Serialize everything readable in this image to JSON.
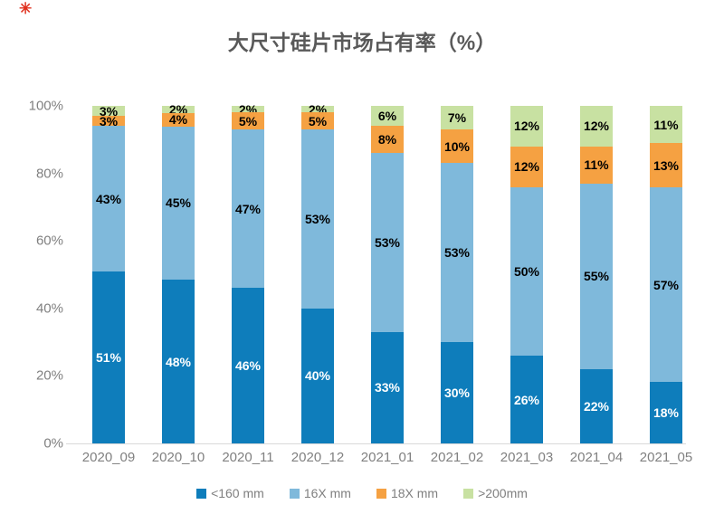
{
  "icons": {
    "red_mark": "✳"
  },
  "colors": {
    "background": "#FFFFFF",
    "title_text": "#595959",
    "axis_text": "#808080",
    "axis_line": "#D9D9D9",
    "red_mark": "#E0301E",
    "legend_text": "#7F7F7F"
  },
  "chart_data": {
    "type": "bar",
    "stacked": true,
    "title": "大尺寸硅片市场占有率（%）",
    "xlabel": "",
    "ylabel": "",
    "ylim": [
      0,
      100
    ],
    "grid": false,
    "legend_position": "bottom",
    "yticks": [
      "0%",
      "20%",
      "40%",
      "60%",
      "80%",
      "100%"
    ],
    "categories": [
      "2020_09",
      "2020_10",
      "2020_11",
      "2020_12",
      "2021_01",
      "2021_02",
      "2021_03",
      "2021_04",
      "2021_05"
    ],
    "series": [
      {
        "name": "<160 mm",
        "color": "#0E7DBB",
        "label_color": "#FFFFFF",
        "values": [
          51,
          48,
          46,
          40,
          33,
          30,
          26,
          22,
          18
        ]
      },
      {
        "name": "16X mm",
        "color": "#7FB9DB",
        "label_color": "#000000",
        "values": [
          43,
          45,
          47,
          53,
          53,
          53,
          50,
          55,
          57
        ]
      },
      {
        "name": "18X mm",
        "color": "#F5A142",
        "label_color": "#000000",
        "values": [
          3,
          4,
          5,
          5,
          8,
          10,
          12,
          11,
          13
        ]
      },
      {
        "name": ">200mm",
        "color": "#C8E1A2",
        "label_color": "#000000",
        "values": [
          3,
          2,
          2,
          2,
          6,
          7,
          12,
          12,
          11
        ]
      }
    ],
    "value_suffix": "%"
  }
}
